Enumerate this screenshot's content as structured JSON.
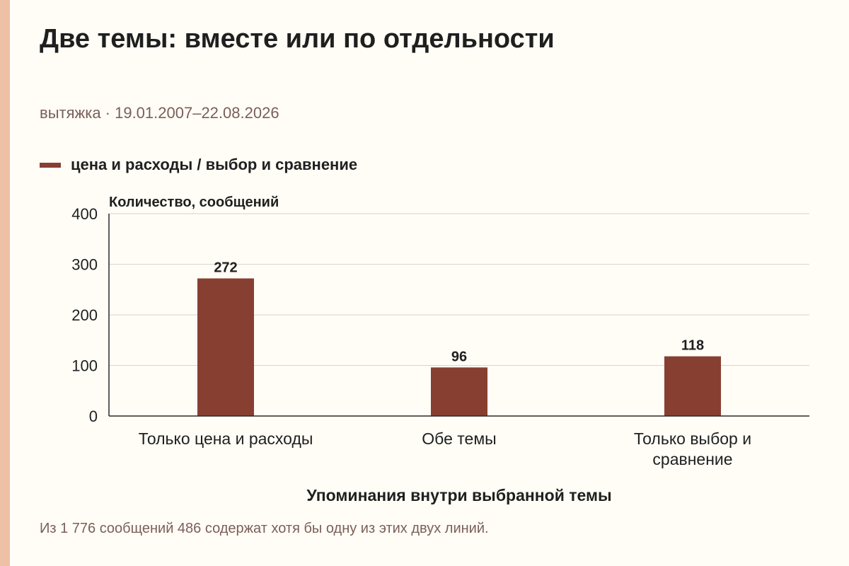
{
  "header": {
    "title": "Две темы: вместе или по отдельности",
    "subtitle": "вытяжка · 19.01.2007–22.08.2026"
  },
  "legend": {
    "label": "цена и расходы / выбор и сравнение",
    "color": "#873f31"
  },
  "footnote": "Из 1 776 сообщений 486 содержат хотя бы одну из этих двух линий.",
  "colors": {
    "bar": "#873f31",
    "grid": "#d9d4cc",
    "axis": "#2a2a2a",
    "accent": "#eec0a6"
  },
  "chart_data": {
    "type": "bar",
    "categories": [
      [
        "Только цена и расходы"
      ],
      [
        "Обе темы"
      ],
      [
        "Только выбор и",
        "сравнение"
      ]
    ],
    "values": [
      272,
      96,
      118
    ],
    "value_labels": [
      "272",
      "96",
      "118"
    ],
    "ylabel": "Количество, сообщений",
    "xlabel": "Упоминания внутри выбранной темы",
    "ylim": [
      0,
      400
    ],
    "yticks": [
      0,
      100,
      200,
      300,
      400
    ],
    "ytick_labels": [
      "0",
      "100",
      "200",
      "300",
      "400"
    ],
    "grid": true
  }
}
